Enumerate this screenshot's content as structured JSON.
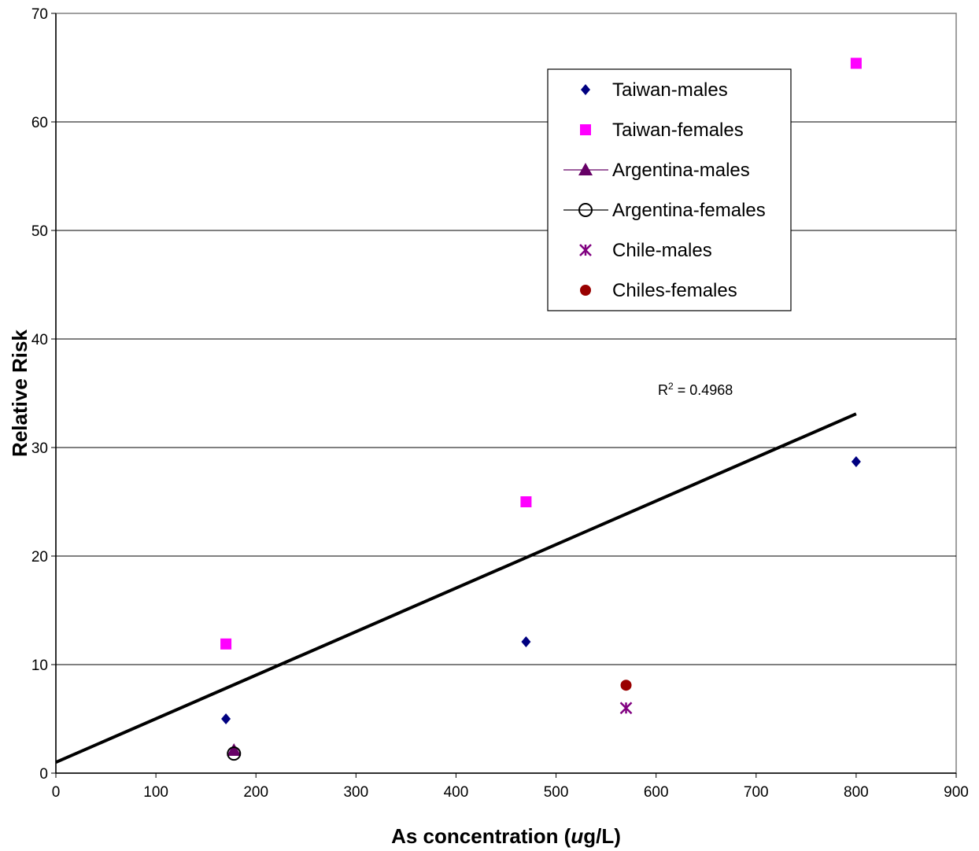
{
  "chart_data": {
    "type": "scatter",
    "xlabel_parts": [
      "As concentration (",
      "u",
      "g/L)"
    ],
    "ylabel": "Relative Risk",
    "xlim": [
      0,
      900
    ],
    "ylim": [
      0,
      70
    ],
    "x_ticks": [
      "0",
      "100",
      "200",
      "300",
      "400",
      "500",
      "600",
      "700",
      "800",
      "900"
    ],
    "y_ticks": [
      "0",
      "10",
      "20",
      "30",
      "40",
      "50",
      "60",
      "70"
    ],
    "grid": "horizontal",
    "legend_position": "top-right",
    "series": [
      {
        "name": "Taiwan-males",
        "marker": "diamond",
        "color": "#000080",
        "points": [
          [
            170,
            5.0
          ],
          [
            470,
            12.1
          ],
          [
            800,
            28.7
          ]
        ]
      },
      {
        "name": "Taiwan-females",
        "marker": "square",
        "color": "#ff00ff",
        "points": [
          [
            170,
            11.9
          ],
          [
            470,
            25.0
          ],
          [
            800,
            65.4
          ]
        ]
      },
      {
        "name": "Argentina-males",
        "marker": "triangle",
        "color": "#660066",
        "points": [
          [
            178,
            2.1
          ]
        ]
      },
      {
        "name": "Argentina-females",
        "marker": "circle-open",
        "color": "#000000",
        "points": [
          [
            178,
            1.8
          ]
        ]
      },
      {
        "name": "Chile-males",
        "marker": "asterisk",
        "color": "#800080",
        "points": [
          [
            570,
            6.0
          ]
        ]
      },
      {
        "name": "Chiles-females",
        "marker": "circle",
        "color": "#990000",
        "points": [
          [
            570,
            8.1
          ]
        ]
      }
    ],
    "trendline": {
      "x": [
        0,
        800
      ],
      "y": [
        1.0,
        33.1
      ],
      "color": "#000000",
      "r2_label": "R",
      "r2_sup": "2",
      "r2_value": " = 0.4968"
    }
  }
}
